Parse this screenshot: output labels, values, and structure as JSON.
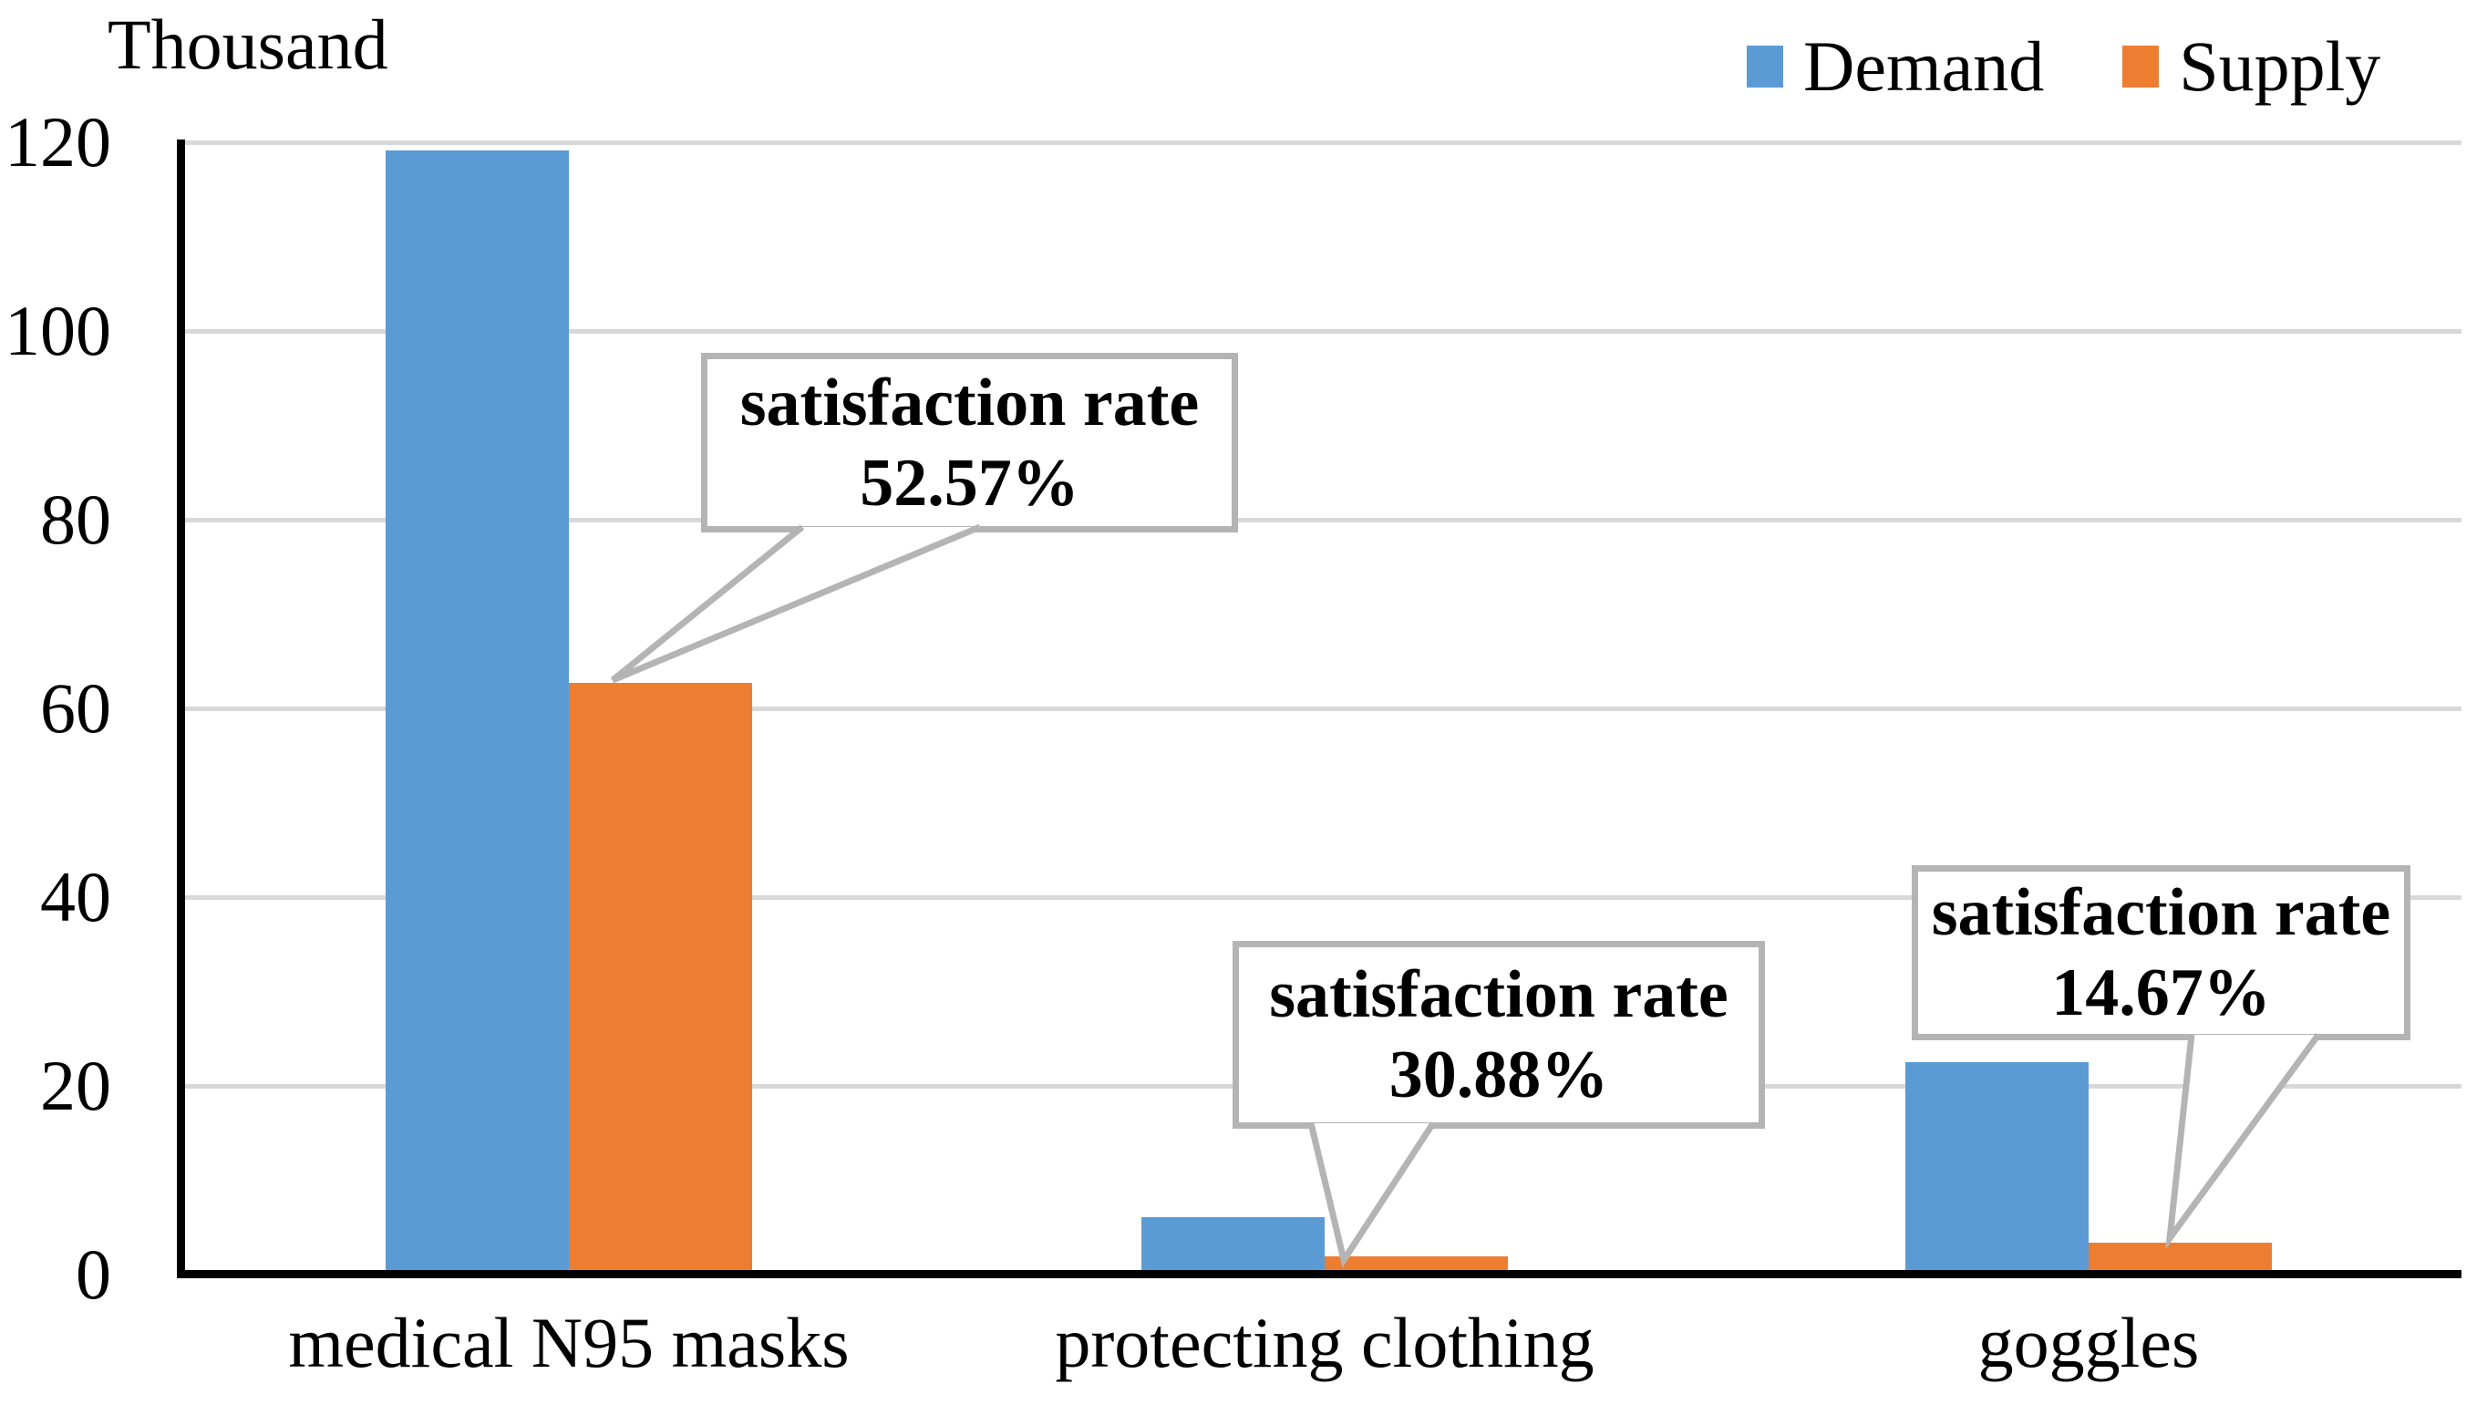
{
  "chart_data": {
    "type": "bar",
    "title": "",
    "unit_label": "Thousand",
    "categories": [
      "medical N95 masks",
      "protecting clothing",
      "goggles"
    ],
    "series": [
      {
        "name": "Demand",
        "color": "#5B9BD5",
        "values": [
          119,
          6,
          22.4
        ]
      },
      {
        "name": "Supply",
        "color": "#ED7D31",
        "values": [
          62.6,
          1.85,
          3.3
        ]
      }
    ],
    "annotations": [
      {
        "line1": "satisfaction rate",
        "line2": "52.57%",
        "category": "medical N95 masks",
        "points_to": "Supply"
      },
      {
        "line1": "satisfaction rate",
        "line2": "30.88%",
        "category": "protecting clothing",
        "points_to": "Supply"
      },
      {
        "line1": "satisfaction rate",
        "line2": "14.67%",
        "category": "goggles",
        "points_to": "Supply"
      }
    ],
    "ylim": [
      0,
      120
    ],
    "yticks": [
      0,
      20,
      40,
      60,
      80,
      100,
      120
    ],
    "grid": true,
    "legend_position": "top-right",
    "colors": {
      "demand": "#5B9BD5",
      "supply": "#ED7D31",
      "gridline": "#D8D8D8",
      "axis": "#000000",
      "callout_border": "#B4B4B4",
      "text": "#000000"
    }
  }
}
